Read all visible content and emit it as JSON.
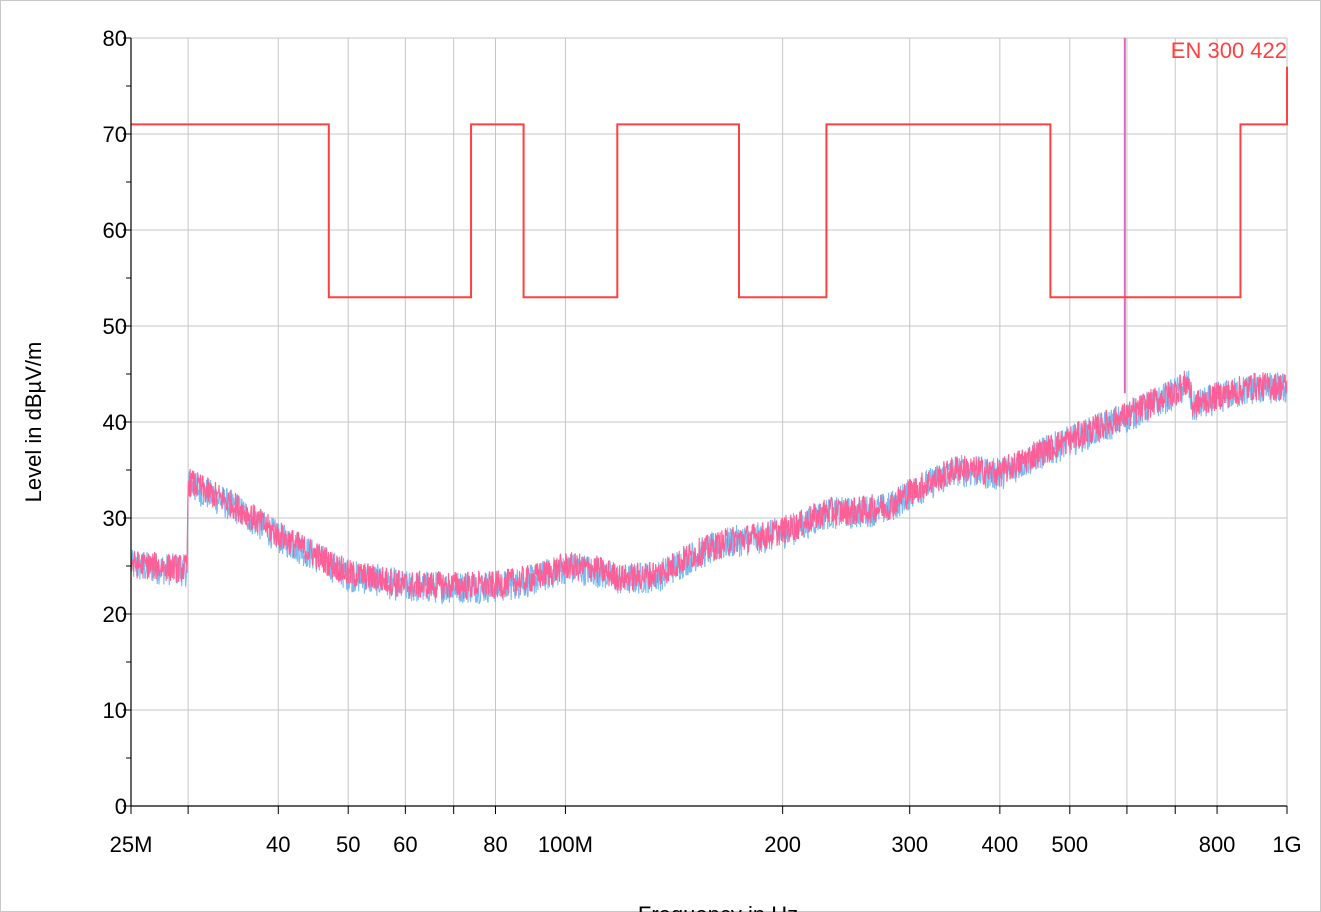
{
  "chart_data": {
    "type": "line",
    "title": "",
    "xlabel": "Frequency in Hz",
    "ylabel": "Level in dBµV/m",
    "x_scale": "log",
    "xlim": [
      25000000,
      1000000000
    ],
    "ylim": [
      0,
      80
    ],
    "grid": true,
    "y_ticks": [
      {
        "value": 0,
        "label": "0"
      },
      {
        "value": 10,
        "label": "10"
      },
      {
        "value": 20,
        "label": "20"
      },
      {
        "value": 30,
        "label": "30"
      },
      {
        "value": 40,
        "label": "40"
      },
      {
        "value": 50,
        "label": "50"
      },
      {
        "value": 60,
        "label": "60"
      },
      {
        "value": 70,
        "label": "70"
      },
      {
        "value": 80,
        "label": "80"
      }
    ],
    "x_ticks": [
      {
        "value": 25000000,
        "label": "25M"
      },
      {
        "value": 30000000,
        "label": ""
      },
      {
        "value": 40000000,
        "label": "40"
      },
      {
        "value": 50000000,
        "label": "50"
      },
      {
        "value": 60000000,
        "label": "60"
      },
      {
        "value": 70000000,
        "label": ""
      },
      {
        "value": 80000000,
        "label": "80"
      },
      {
        "value": 100000000,
        "label": "100M"
      },
      {
        "value": 200000000,
        "label": "200"
      },
      {
        "value": 300000000,
        "label": "300"
      },
      {
        "value": 400000000,
        "label": "400"
      },
      {
        "value": 500000000,
        "label": "500"
      },
      {
        "value": 600000000,
        "label": ""
      },
      {
        "value": 700000000,
        "label": ""
      },
      {
        "value": 800000000,
        "label": "800"
      },
      {
        "value": 1000000000,
        "label": "1G"
      }
    ],
    "limit_line": {
      "label": "EN 300 422",
      "color": "#ff4040",
      "points": [
        [
          25000000,
          71
        ],
        [
          47000000,
          71
        ],
        [
          47000000,
          53
        ],
        [
          74000000,
          53
        ],
        [
          74000000,
          71
        ],
        [
          87500000,
          71
        ],
        [
          87500000,
          53
        ],
        [
          118000000,
          53
        ],
        [
          118000000,
          71
        ],
        [
          174000000,
          71
        ],
        [
          174000000,
          53
        ],
        [
          230000000,
          53
        ],
        [
          230000000,
          71
        ],
        [
          470000000,
          71
        ],
        [
          470000000,
          53
        ],
        [
          862000000,
          53
        ],
        [
          862000000,
          71
        ],
        [
          1000000000,
          71
        ],
        [
          1000000000,
          77
        ]
      ]
    },
    "marker": {
      "x": 596000000,
      "y_from": 43,
      "y_to": 80,
      "color": "#dd66bb"
    },
    "series": [
      {
        "color": "#6cb4ee",
        "values": [
          [
            25000000,
            25
          ],
          [
            29900000,
            24.5
          ],
          [
            30000000,
            33.5
          ],
          [
            35000000,
            31
          ],
          [
            40000000,
            28
          ],
          [
            45000000,
            26
          ],
          [
            50000000,
            24
          ],
          [
            55000000,
            23.5
          ],
          [
            60000000,
            22.8
          ],
          [
            70000000,
            22.8
          ],
          [
            80000000,
            22.8
          ],
          [
            90000000,
            23.5
          ],
          [
            100000000,
            24.8
          ],
          [
            110000000,
            24.5
          ],
          [
            120000000,
            23.5
          ],
          [
            135000000,
            24
          ],
          [
            150000000,
            26
          ],
          [
            170000000,
            27.5
          ],
          [
            190000000,
            28
          ],
          [
            210000000,
            29
          ],
          [
            230000000,
            30.5
          ],
          [
            250000000,
            30.5
          ],
          [
            280000000,
            31
          ],
          [
            300000000,
            32.5
          ],
          [
            350000000,
            35
          ],
          [
            400000000,
            34.5
          ],
          [
            450000000,
            36.5
          ],
          [
            500000000,
            38
          ],
          [
            600000000,
            40.5
          ],
          [
            700000000,
            43
          ],
          [
            730000000,
            44
          ],
          [
            740000000,
            41.5
          ],
          [
            800000000,
            42.5
          ],
          [
            900000000,
            43.5
          ],
          [
            1000000000,
            43.5
          ]
        ]
      },
      {
        "color": "#ff5e96",
        "values": [
          [
            25000000,
            25.2
          ],
          [
            29900000,
            24.7
          ],
          [
            30000000,
            33.8
          ],
          [
            35000000,
            31.2
          ],
          [
            40000000,
            28.2
          ],
          [
            45000000,
            26.2
          ],
          [
            50000000,
            24.2
          ],
          [
            55000000,
            23.7
          ],
          [
            60000000,
            23
          ],
          [
            70000000,
            23
          ],
          [
            80000000,
            23
          ],
          [
            90000000,
            23.7
          ],
          [
            100000000,
            25
          ],
          [
            110000000,
            24.7
          ],
          [
            120000000,
            23.7
          ],
          [
            135000000,
            24.2
          ],
          [
            150000000,
            26.2
          ],
          [
            170000000,
            27.7
          ],
          [
            190000000,
            28.2
          ],
          [
            210000000,
            29.2
          ],
          [
            230000000,
            30.7
          ],
          [
            250000000,
            30.7
          ],
          [
            280000000,
            31.2
          ],
          [
            300000000,
            32.7
          ],
          [
            350000000,
            35.2
          ],
          [
            400000000,
            34.7
          ],
          [
            450000000,
            36.7
          ],
          [
            500000000,
            38.2
          ],
          [
            600000000,
            40.7
          ],
          [
            700000000,
            43.2
          ],
          [
            730000000,
            44.2
          ],
          [
            740000000,
            41.7
          ],
          [
            800000000,
            42.7
          ],
          [
            900000000,
            43.7
          ],
          [
            1000000000,
            43.7
          ]
        ]
      }
    ]
  }
}
